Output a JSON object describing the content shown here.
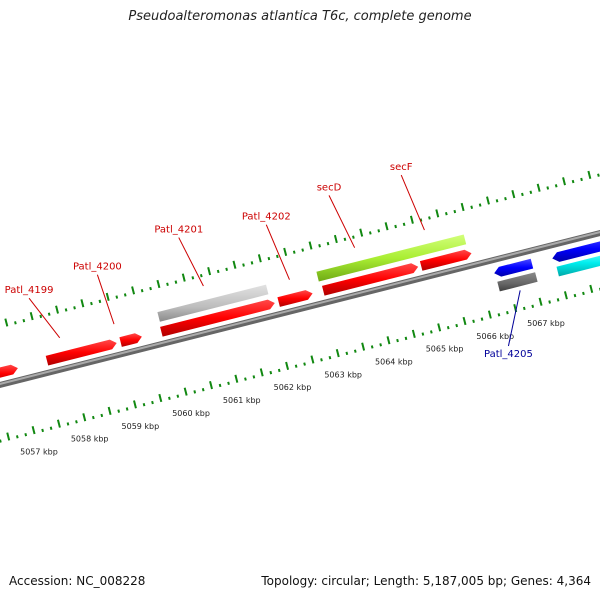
{
  "title": "Pseudoalteromonas atlantica T6c, complete genome",
  "footer": {
    "accession": "Accession: NC_008228",
    "summary": "Topology: circular; Length: 5,187,005 bp; Genes: 4,364"
  },
  "colors": {
    "forward_cds": "#ff0000",
    "reverse_cds": "#0000ff",
    "forward_gene_bar": "#bbbbbb",
    "reverse_gene_bar": "#666666",
    "operon": "#aaee33",
    "rna": "#00eeee",
    "backbone": "#888888",
    "ticks": "#118811",
    "forward_label": "#cc0000",
    "reverse_label": "#000099"
  },
  "scale_labels": [
    "5057 kbp",
    "5058 kbp",
    "5059 kbp",
    "5060 kbp",
    "5061 kbp",
    "5062 kbp",
    "5063 kbp",
    "5064 kbp",
    "5065 kbp",
    "5066 kbp",
    "5067 kbp"
  ],
  "gene_labels": [
    {
      "text": "Patl_4199",
      "strand": "forward"
    },
    {
      "text": "Patl_4200",
      "strand": "forward"
    },
    {
      "text": "Patl_4201",
      "strand": "forward"
    },
    {
      "text": "Patl_4202",
      "strand": "forward"
    },
    {
      "text": "secD",
      "strand": "forward"
    },
    {
      "text": "secF",
      "strand": "forward"
    },
    {
      "text": "Patl_4205",
      "strand": "reverse"
    }
  ]
}
